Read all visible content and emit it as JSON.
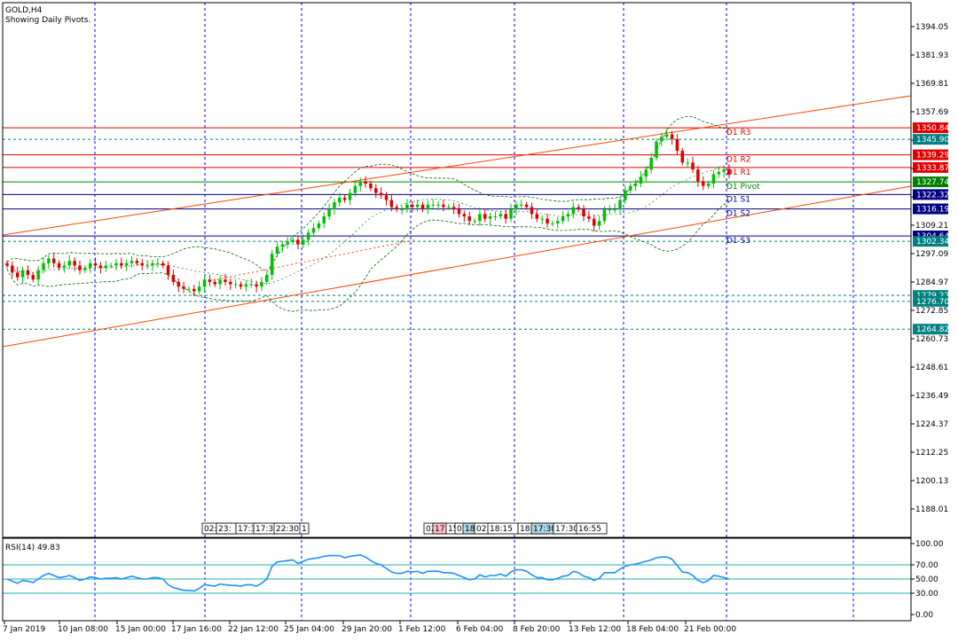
{
  "header": {
    "symbol": "GOLD,H4",
    "subtitle": "Showing Daily Pivots."
  },
  "colors": {
    "bull": "#00c000",
    "bear": "#e00000",
    "grid": "#0000ff",
    "pivot_red": "#e00000",
    "pivot_green": "#008000",
    "pivot_navy": "#000080",
    "teal": "#008080",
    "channel": "#ff4500",
    "bands": "#006400",
    "rsi_line": "#1e90ff",
    "rsi_levels": "#20b2aa"
  },
  "chart_data": {
    "type": "candlestick",
    "symbol": "GOLD",
    "timeframe": "H4",
    "ylim": [
      1176,
      1400
    ],
    "price_ticks": [
      "1394.05",
      "1381.93",
      "1369.81",
      "1357.69",
      "1345.57",
      "1333.45",
      "1321.33",
      "1309.21",
      "1297.09",
      "1284.97",
      "1272.85",
      "1260.73",
      "1248.61",
      "1236.49",
      "1224.37",
      "1212.25",
      "1200.13",
      "1188.01"
    ],
    "x_labels": [
      "7 Jan 2019",
      "10 Jan 08:00",
      "15 Jan 00:00",
      "17 Jan 16:00",
      "22 Jan 12:00",
      "25 Jan 04:00",
      "29 Jan 20:00",
      "1 Feb 12:00",
      "6 Feb 04:00",
      "8 Feb 20:00",
      "13 Feb 12:00",
      "18 Feb 04:00",
      "21 Feb 00:00"
    ],
    "closes": [
      1292,
      1289,
      1287,
      1290,
      1288,
      1286,
      1290,
      1293,
      1295,
      1293,
      1291,
      1292,
      1294,
      1292,
      1290,
      1291,
      1293,
      1292,
      1291,
      1292,
      1292,
      1293,
      1292,
      1293,
      1294,
      1293,
      1292,
      1292,
      1293,
      1293,
      1292,
      1288,
      1285,
      1283,
      1282,
      1282,
      1281,
      1283,
      1286,
      1285,
      1284,
      1286,
      1285,
      1284,
      1284,
      1283,
      1284,
      1284,
      1283,
      1285,
      1288,
      1297,
      1300,
      1301,
      1302,
      1303,
      1301,
      1303,
      1306,
      1308,
      1310,
      1313,
      1316,
      1319,
      1321,
      1320,
      1323,
      1326,
      1328,
      1327,
      1325,
      1323,
      1322,
      1320,
      1317,
      1316,
      1316,
      1318,
      1317,
      1318,
      1316,
      1318,
      1318,
      1318,
      1317,
      1317,
      1316,
      1314,
      1313,
      1311,
      1311,
      1314,
      1312,
      1313,
      1313,
      1314,
      1312,
      1316,
      1318,
      1318,
      1317,
      1314,
      1312,
      1312,
      1310,
      1310,
      1311,
      1313,
      1314,
      1317,
      1316,
      1313,
      1312,
      1309,
      1311,
      1316,
      1316,
      1316,
      1320,
      1324,
      1326,
      1327,
      1330,
      1333,
      1338,
      1345,
      1347,
      1348,
      1346,
      1341,
      1336,
      1336,
      1333,
      1328,
      1326,
      1327,
      1331,
      1332,
      1333,
      1331
    ],
    "pivots": [
      {
        "label": "D1 R3",
        "value": "1350.84",
        "kind": "red"
      },
      {
        "label": "D1 R2",
        "value": "1339.29",
        "kind": "red"
      },
      {
        "label": "D1 R1",
        "value": "1333.87",
        "kind": "red"
      },
      {
        "label": "D1 Pivot",
        "value": "1327.74",
        "kind": "green"
      },
      {
        "label": "D1 S1",
        "value": "1322.32",
        "kind": "navy"
      },
      {
        "label": "D1 S2",
        "value": "1316.19",
        "kind": "navy"
      },
      {
        "label": "D1 S3",
        "value": "1304.64",
        "kind": "navy"
      }
    ],
    "extra_levels": [
      {
        "value": "1345.90",
        "style": "dashed"
      },
      {
        "value": "1302.34",
        "style": "dashed"
      },
      {
        "value": "1279.22",
        "style": "dashed"
      },
      {
        "value": "1276.70",
        "style": "dashed"
      },
      {
        "value": "1264.82",
        "style": "dashed"
      }
    ],
    "session_labels": [
      {
        "text": "02:18",
        "x": 0.5,
        "bg": "#ffffff"
      },
      {
        "text": "23:",
        "x": 2.5,
        "bg": "#ffffff"
      },
      {
        "text": "17:3",
        "x": 4.0,
        "bg": "#ffffff"
      },
      {
        "text": "17:3",
        "x": 5.5,
        "bg": "#ffffff"
      },
      {
        "text": "22:30",
        "x": 6.0,
        "bg": "#ffffff"
      },
      {
        "text": "1",
        "x": 0,
        "bg": "#ffffff"
      },
      {
        "text": "02:",
        "x": 0,
        "bg": "#ffffff"
      },
      {
        "text": "17",
        "x": 0,
        "bg": "#ffc0cb"
      },
      {
        "text": "15",
        "x": 0,
        "bg": "#ffffff"
      },
      {
        "text": "02:",
        "x": 0,
        "bg": "#ffffff"
      },
      {
        "text": "18:30",
        "x": 0,
        "bg": "#add8e6"
      },
      {
        "text": "02:",
        "x": 0,
        "bg": "#ffffff"
      },
      {
        "text": "18:15",
        "x": 0,
        "bg": "#ffffff"
      },
      {
        "text": "18:45",
        "x": 0,
        "bg": "#ffffff"
      },
      {
        "text": "17:30",
        "x": 0,
        "bg": "#add8e6"
      },
      {
        "text": "17:30",
        "x": 0,
        "bg": "#ffffff"
      },
      {
        "text": "16:55",
        "x": 0,
        "bg": "#ffffff"
      }
    ],
    "rsi": {
      "label": "RSI(14) 49.83",
      "period": 14,
      "value": 49.83,
      "levels": [
        70,
        50,
        30
      ],
      "ticks": [
        "100.00",
        "70.00",
        "50.00",
        "30.00",
        "0.00"
      ],
      "values": [
        50,
        47,
        44,
        48,
        47,
        45,
        50,
        55,
        58,
        55,
        52,
        53,
        55,
        52,
        48,
        50,
        53,
        52,
        50,
        51,
        51,
        52,
        50,
        52,
        54,
        52,
        50,
        50,
        52,
        52,
        50,
        42,
        38,
        36,
        34,
        34,
        33,
        37,
        42,
        41,
        40,
        43,
        42,
        41,
        41,
        40,
        42,
        42,
        40,
        44,
        50,
        68,
        74,
        75,
        76,
        77,
        72,
        75,
        78,
        79,
        80,
        82,
        83,
        83,
        83,
        80,
        82,
        83,
        84,
        81,
        76,
        72,
        70,
        65,
        60,
        58,
        58,
        61,
        60,
        61,
        58,
        61,
        61,
        61,
        59,
        59,
        58,
        55,
        52,
        49,
        50,
        56,
        53,
        55,
        55,
        57,
        54,
        60,
        63,
        63,
        61,
        56,
        52,
        52,
        49,
        49,
        51,
        54,
        55,
        61,
        59,
        54,
        52,
        48,
        51,
        59,
        59,
        59,
        64,
        68,
        70,
        71,
        73,
        75,
        77,
        80,
        81,
        81,
        78,
        69,
        60,
        59,
        55,
        48,
        45,
        48,
        55,
        54,
        52,
        50
      ]
    }
  }
}
